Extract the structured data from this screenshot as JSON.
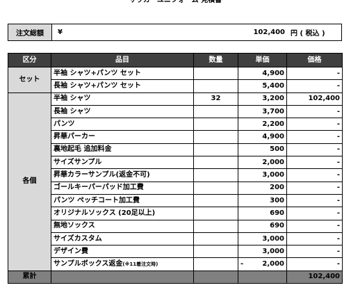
{
  "title": "サッカーユニフォーム 見積書",
  "total_order": {
    "label": "注文総額",
    "currency": "¥",
    "amount": "102,400",
    "unit_note": "円 ( 税込 )"
  },
  "table": {
    "headers": [
      "区分",
      "品目",
      "数量",
      "単価",
      "価格"
    ],
    "categories": {
      "set": "セット",
      "individual": "各個",
      "sum": "累計"
    },
    "set_rows": [
      {
        "item": "半袖 シャツ+パンツ セット",
        "qty": "",
        "price": "4,900",
        "amount": "-"
      },
      {
        "item": "長袖 シャツ+パンツ セット",
        "qty": "",
        "price": "5,400",
        "amount": "-"
      }
    ],
    "individual_rows": [
      {
        "item": "半袖 シャツ",
        "qty": "32",
        "price": "3,200",
        "amount": "102,400"
      },
      {
        "item": "長袖 シャツ",
        "qty": "",
        "price": "3,700",
        "amount": "-"
      },
      {
        "item": "パンツ",
        "qty": "",
        "price": "2,200",
        "amount": "-"
      },
      {
        "item": "昇華パーカー",
        "qty": "",
        "price": "4,900",
        "amount": "-"
      },
      {
        "item": "裏地起毛 追加料金",
        "qty": "",
        "price": "500",
        "amount": "-"
      },
      {
        "item": "サイズサンプル",
        "qty": "",
        "price": "2,000",
        "amount": "-"
      },
      {
        "item": "昇華カラーサンプル(返金不可)",
        "qty": "",
        "price": "3,000",
        "amount": "-"
      },
      {
        "item": "ゴールキーパーパッド加工費",
        "qty": "",
        "price": "200",
        "amount": "-"
      },
      {
        "item": "パンツ ペッチコート加工費",
        "qty": "",
        "price": "300",
        "amount": "-"
      },
      {
        "item": "オリジナルソックス (20足以上)",
        "qty": "",
        "price": "690",
        "amount": "-"
      },
      {
        "item": "無地ソックス",
        "qty": "",
        "price": "690",
        "amount": "-"
      },
      {
        "item": "サイズカスタム",
        "qty": "",
        "price": "3,000",
        "amount": "-"
      },
      {
        "item": "デザイン費",
        "qty": "",
        "price": "3,000",
        "amount": "-"
      }
    ],
    "refund_row": {
      "item": "サンプルボックス返金",
      "note": "(※11着注文時)",
      "price_sign": "-",
      "price": "2,000",
      "amount": "-"
    },
    "sum_row": {
      "amount": "102,400"
    }
  }
}
